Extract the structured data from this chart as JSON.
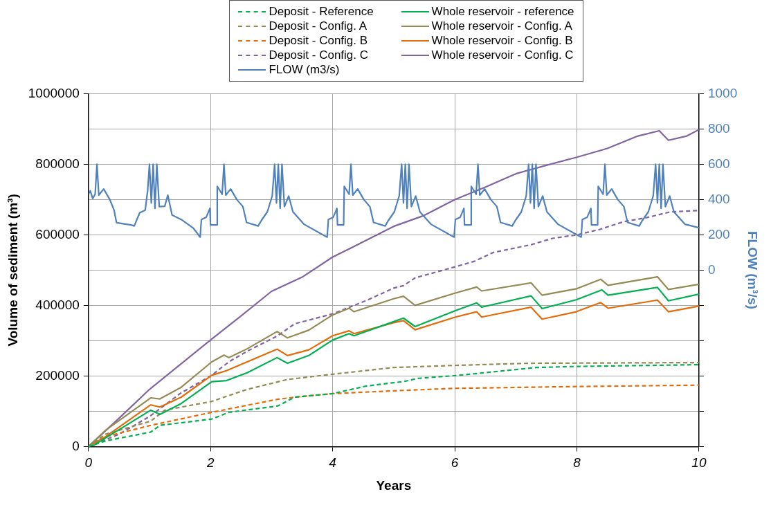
{
  "chart_data": {
    "type": "line",
    "xlabel": "Years",
    "ylabel": "Volume of sediment (m³)",
    "y2label": "FLOW (m³/s)",
    "xlim": [
      0,
      10
    ],
    "xticks": [
      0,
      2,
      4,
      6,
      8,
      10
    ],
    "ylim": [
      0,
      1000000
    ],
    "yticks": [
      0,
      200000,
      400000,
      600000,
      800000,
      1000000
    ],
    "y2lim": [
      -1000,
      1000
    ],
    "y2ticks": [
      {
        "value": -1000,
        "label": null
      },
      {
        "value": -800,
        "label": null
      },
      {
        "value": -600,
        "label": null
      },
      {
        "value": -400,
        "label": null
      },
      {
        "value": -200,
        "label": null
      },
      0,
      200,
      400,
      600,
      800,
      1000
    ],
    "grid": true,
    "legend": "top",
    "marker": "none",
    "series": [
      {
        "name": "Deposit - Reference",
        "color": "#00b050",
        "line_style": "dashed",
        "x": [
          0,
          0.28,
          1.02,
          1.17,
          2.02,
          2.3,
          3.1,
          3.38,
          4.0,
          4.54,
          5.0,
          5.16,
          5.39,
          6.01,
          6.36,
          7.33,
          7.99,
          10
        ],
        "values": [
          0,
          16000,
          41000,
          60000,
          78000,
          97000,
          115000,
          140000,
          150000,
          171000,
          181000,
          184000,
          193000,
          201000,
          207000,
          224000,
          227000,
          232000
        ]
      },
      {
        "name": "Whole reservoir - reference",
        "color": "#00b050",
        "line_style": "solid",
        "x": [
          0,
          0.09,
          1.02,
          1.17,
          1.52,
          2.02,
          2.26,
          2.6,
          3.09,
          3.26,
          3.61,
          4.0,
          4.27,
          4.35,
          5.0,
          5.16,
          5.35,
          6.01,
          6.36,
          6.44,
          7.25,
          7.43,
          7.99,
          8.41,
          8.51,
          9.32,
          9.5,
          10
        ],
        "values": [
          0,
          4000,
          103000,
          91000,
          122000,
          184000,
          187000,
          209000,
          252000,
          236000,
          258000,
          302000,
          320000,
          314000,
          354000,
          364000,
          340000,
          385000,
          407000,
          395000,
          427000,
          391000,
          416000,
          444000,
          429000,
          451000,
          413000,
          432000
        ]
      },
      {
        "name": "Deposit - Config. A",
        "color": "#948a54",
        "line_style": "dashed",
        "x": [
          0,
          0.28,
          1.02,
          1.25,
          2.02,
          2.6,
          3.26,
          4.0,
          5.0,
          6.01,
          7.21,
          10
        ],
        "values": [
          0,
          35000,
          72000,
          103000,
          128000,
          162000,
          190000,
          205000,
          224000,
          230000,
          236000,
          238000
        ]
      },
      {
        "name": "Whole reservoir - Config. A",
        "color": "#948a54",
        "line_style": "solid",
        "x": [
          0,
          0.28,
          1.02,
          1.17,
          1.52,
          2.02,
          2.22,
          2.3,
          2.6,
          3.09,
          3.26,
          3.61,
          4.0,
          4.27,
          4.35,
          5.0,
          5.16,
          5.35,
          6.01,
          6.36,
          6.44,
          7.25,
          7.43,
          7.99,
          8.39,
          8.51,
          9.32,
          9.5,
          10
        ],
        "values": [
          0,
          46000,
          138000,
          135000,
          168000,
          240000,
          259000,
          252000,
          277000,
          326000,
          308000,
          330000,
          373000,
          392000,
          382000,
          419000,
          426000,
          400000,
          435000,
          452000,
          441000,
          464000,
          429000,
          447000,
          474000,
          457000,
          481000,
          445000,
          460000
        ]
      },
      {
        "name": "Deposit - Config. B",
        "color": "#e36c09",
        "line_style": "dashed",
        "x": [
          0,
          0.28,
          1.02,
          2.02,
          3.1,
          3.38,
          4.0,
          5.0,
          6.01,
          7.99,
          10
        ],
        "values": [
          0,
          28000,
          60000,
          97000,
          134000,
          140000,
          150000,
          158000,
          165000,
          170000,
          174000
        ]
      },
      {
        "name": "Whole reservoir - Config. B",
        "color": "#e36c09",
        "line_style": "solid",
        "x": [
          0,
          0.28,
          1.02,
          1.17,
          1.52,
          2.02,
          2.26,
          2.6,
          3.09,
          3.26,
          3.61,
          4.0,
          4.27,
          4.35,
          5.0,
          5.16,
          5.35,
          6.01,
          6.36,
          6.44,
          7.25,
          7.43,
          7.99,
          8.39,
          8.51,
          9.32,
          9.5,
          10
        ],
        "values": [
          0,
          28000,
          118000,
          112000,
          140000,
          202000,
          215000,
          240000,
          276000,
          258000,
          274000,
          314000,
          328000,
          320000,
          351000,
          357000,
          331000,
          367000,
          382000,
          367000,
          395000,
          361000,
          382000,
          408000,
          392000,
          415000,
          382000,
          398000
        ]
      },
      {
        "name": "Deposit - Config. C",
        "color": "#8064a2",
        "line_style": "dashed",
        "x": [
          0,
          0.5,
          1.0,
          1.5,
          2.02,
          2.3,
          2.6,
          3.1,
          3.38,
          4.0,
          4.54,
          5.0,
          5.16,
          5.35,
          6.0,
          6.32,
          6.63,
          7.25,
          7.6,
          8.0,
          8.37,
          8.76,
          9.15,
          9.53,
          10
        ],
        "values": [
          0,
          35000,
          85000,
          150000,
          202000,
          240000,
          270000,
          314000,
          348000,
          376000,
          413000,
          449000,
          456000,
          478000,
          509000,
          525000,
          550000,
          572000,
          590000,
          600000,
          615000,
          637000,
          649000,
          665000,
          669000
        ]
      },
      {
        "name": "Whole reservoir - Config. C",
        "color": "#8064a2",
        "line_style": "solid",
        "x": [
          0,
          0.5,
          1.0,
          1.5,
          2.0,
          2.5,
          3.0,
          3.5,
          4.0,
          4.5,
          5.0,
          5.5,
          6.0,
          6.5,
          7.0,
          7.5,
          8.0,
          8.5,
          9.0,
          9.35,
          9.5,
          9.8,
          10
        ],
        "values": [
          0,
          80000,
          162000,
          232000,
          302000,
          370000,
          440000,
          480000,
          537000,
          580000,
          624000,
          655000,
          700000,
          735000,
          773000,
          797000,
          820000,
          845000,
          880000,
          895000,
          868000,
          880000,
          898000
        ]
      },
      {
        "name": "FLOW (m3/s)",
        "color": "#4f81bd",
        "line_style": "solid",
        "axis": "y2",
        "x": [
          0,
          0.03,
          0.07,
          0.11,
          0.14,
          0.17,
          0.25,
          0.35,
          0.42,
          0.46,
          0.7,
          0.75,
          0.84,
          0.93,
          0.97,
          1.0,
          1.03,
          1.06,
          1.09,
          1.12,
          1.16,
          1.25,
          1.3,
          1.37,
          1.52,
          1.72,
          1.83,
          1.85,
          1.93,
          1.99,
          2.0,
          2.1,
          2.11,
          2.19,
          2.22,
          2.25,
          2.33,
          2.43,
          2.53,
          2.59,
          2.78,
          2.83,
          2.93,
          3.01,
          3.05,
          3.08,
          3.11,
          3.14,
          3.17,
          3.21,
          3.28,
          3.35,
          3.53,
          3.91,
          3.93,
          4.01,
          4.07,
          4.08,
          4.18,
          4.19,
          4.27,
          4.3,
          4.33,
          4.41,
          4.51,
          4.61,
          4.67,
          4.86,
          4.91,
          5.01,
          5.09,
          5.13,
          5.16,
          5.19,
          5.22,
          5.25,
          5.29,
          5.36,
          5.43,
          5.61,
          5.99,
          6.01,
          6.09,
          6.15,
          6.16,
          6.26,
          6.27,
          6.35,
          6.38,
          6.41,
          6.49,
          6.59,
          6.69,
          6.75,
          6.94,
          6.99,
          7.09,
          7.17,
          7.21,
          7.24,
          7.27,
          7.3,
          7.33,
          7.37,
          7.44,
          7.51,
          7.69,
          8.07,
          8.09,
          8.17,
          8.23,
          8.24,
          8.34,
          8.35,
          8.43,
          8.46,
          8.49,
          8.57,
          8.67,
          8.77,
          8.83,
          9.02,
          9.07,
          9.17,
          9.25,
          9.29,
          9.32,
          9.35,
          9.38,
          9.41,
          9.45,
          9.52,
          9.59,
          9.77,
          10
        ],
        "values": [
          430,
          450,
          406,
          430,
          600,
          425,
          460,
          400,
          340,
          269,
          256,
          250,
          325,
          340,
          450,
          600,
          380,
          600,
          350,
          600,
          360,
          362,
          425,
          312,
          287,
          237,
          187,
          287,
          300,
          350,
          256,
          256,
          475,
          430,
          600,
          425,
          460,
          400,
          360,
          270,
          250,
          280,
          330,
          420,
          600,
          380,
          600,
          350,
          600,
          360,
          420,
          330,
          260,
          187,
          287,
          300,
          350,
          256,
          256,
          475,
          430,
          600,
          425,
          460,
          400,
          360,
          270,
          250,
          280,
          330,
          420,
          600,
          380,
          600,
          350,
          600,
          360,
          420,
          330,
          260,
          187,
          287,
          300,
          350,
          256,
          256,
          475,
          430,
          600,
          425,
          460,
          400,
          360,
          270,
          250,
          280,
          330,
          420,
          600,
          380,
          600,
          350,
          600,
          360,
          420,
          330,
          260,
          187,
          287,
          300,
          350,
          256,
          256,
          475,
          430,
          600,
          425,
          460,
          400,
          360,
          270,
          250,
          280,
          330,
          420,
          600,
          380,
          600,
          350,
          600,
          360,
          420,
          330,
          260,
          240
        ]
      }
    ]
  }
}
